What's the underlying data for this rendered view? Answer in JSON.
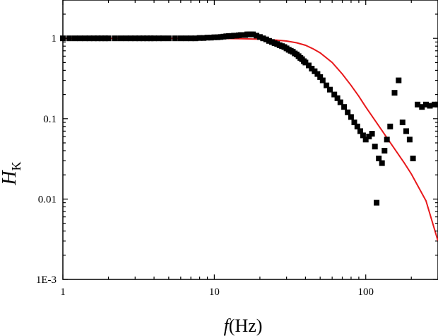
{
  "chart_data": {
    "type": "scatter",
    "title": "",
    "xlabel": {
      "italic": "f",
      "rest": "(Hz)"
    },
    "ylabel": {
      "italic": "H",
      "subscript": "K"
    },
    "xscale": "log",
    "yscale": "log",
    "xlim": [
      1,
      300
    ],
    "ylim": [
      0.001,
      3
    ],
    "grid": false,
    "x_ticks": [
      1,
      10,
      100
    ],
    "x_tick_labels": [
      "1",
      "10",
      "100"
    ],
    "y_ticks": [
      0.001,
      0.01,
      0.1,
      1
    ],
    "y_tick_labels": [
      "1E-3",
      "0.01",
      "0.1",
      "1"
    ],
    "colors": {
      "points": "#000000",
      "fit": "#e8191c",
      "axes": "#000000"
    },
    "series": [
      {
        "kind": "scatter",
        "marker": "square",
        "x": [
          1,
          1.1,
          1.2,
          1.3,
          1.4,
          1.5,
          1.6,
          1.7,
          1.8,
          1.9,
          2,
          2.2,
          2.4,
          2.6,
          2.8,
          3,
          3.2,
          3.4,
          3.6,
          3.8,
          4,
          4.3,
          4.6,
          5,
          5.5,
          6,
          6.5,
          7,
          7.5,
          8,
          8.5,
          9,
          9.5,
          10,
          10.5,
          11,
          11.5,
          12,
          12.5,
          13,
          13.5,
          14,
          14.5,
          15,
          15.5,
          16,
          16.5,
          17,
          17.5,
          18,
          19,
          20,
          21,
          22,
          23,
          24,
          25,
          26,
          27,
          28,
          29,
          30,
          31,
          32,
          33,
          34,
          35,
          36,
          37,
          38,
          39,
          40,
          42,
          44,
          46,
          48,
          50,
          52,
          55,
          58,
          62,
          65,
          68,
          72,
          76,
          80,
          84,
          88,
          92,
          96,
          100,
          105,
          110,
          115,
          118,
          122,
          128,
          133,
          138,
          145,
          155,
          165,
          175,
          185,
          195,
          205,
          220,
          235,
          250,
          265,
          285,
          300
        ],
        "y": [
          1,
          1,
          1,
          1,
          1,
          1,
          1,
          1,
          1,
          1,
          1,
          1,
          1,
          1,
          1,
          1,
          1,
          1,
          1,
          1,
          1,
          1,
          1,
          1,
          1,
          1,
          1,
          1,
          1,
          1.01,
          1.01,
          1.02,
          1.02,
          1.03,
          1.03,
          1.04,
          1.05,
          1.06,
          1.07,
          1.07,
          1.08,
          1.08,
          1.09,
          1.1,
          1.1,
          1.1,
          1.12,
          1.12,
          1.12,
          1.12,
          1.08,
          1.04,
          1,
          0.97,
          0.93,
          0.9,
          0.87,
          0.85,
          0.82,
          0.8,
          0.78,
          0.75,
          0.72,
          0.7,
          0.68,
          0.65,
          0.63,
          0.6,
          0.57,
          0.55,
          0.52,
          0.5,
          0.46,
          0.42,
          0.39,
          0.36,
          0.33,
          0.3,
          0.26,
          0.23,
          0.2,
          0.18,
          0.16,
          0.14,
          0.12,
          0.105,
          0.09,
          0.08,
          0.07,
          0.062,
          0.055,
          0.06,
          0.065,
          0.045,
          0.009,
          0.032,
          0.028,
          0.04,
          0.055,
          0.08,
          0.21,
          0.3,
          0.09,
          0.07,
          0.055,
          0.032,
          0.15,
          0.14,
          0.15,
          0.145,
          0.15,
          0.15
        ]
      },
      {
        "kind": "line",
        "x": [
          1,
          2,
          5,
          10,
          15,
          20,
          25,
          30,
          35,
          40,
          45,
          50,
          60,
          70,
          80,
          90,
          100,
          120,
          150,
          180,
          200,
          250,
          300
        ],
        "y": [
          1,
          1,
          1,
          0.998,
          0.99,
          0.975,
          0.955,
          0.925,
          0.88,
          0.82,
          0.74,
          0.66,
          0.5,
          0.36,
          0.26,
          0.19,
          0.14,
          0.085,
          0.046,
          0.028,
          0.0205,
          0.0095,
          0.003
        ]
      }
    ]
  }
}
